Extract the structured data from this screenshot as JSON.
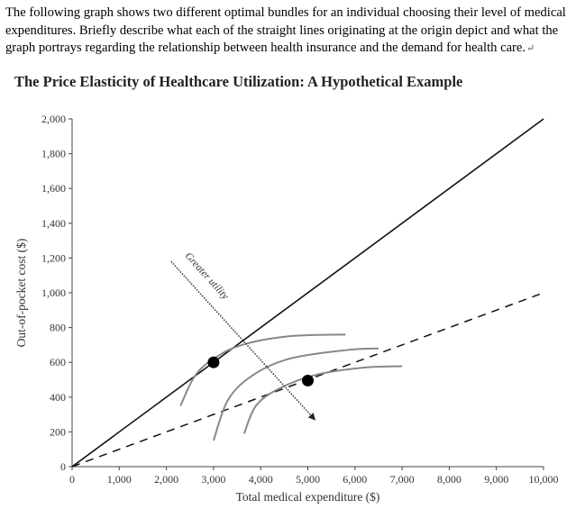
{
  "question": {
    "text": "The following graph shows two different optimal bundles for an individual choosing their level of medical expenditures. Briefly describe what each of the straight lines originating at the origin depict and what the graph portrays regarding the relationship between health insurance and the demand for health care.",
    "return_symbol": "↵"
  },
  "chart_data": {
    "type": "line",
    "title": "The Price Elasticity of Healthcare Utilization: A Hypothetical Example",
    "xlabel": "Total medical expenditure ($)",
    "ylabel": "Out-of-pocket cost ($)",
    "xlim": [
      0,
      10000
    ],
    "ylim": [
      0,
      2000
    ],
    "x_ticks": [
      0,
      1000,
      2000,
      3000,
      4000,
      5000,
      6000,
      7000,
      8000,
      9000,
      10000
    ],
    "x_tick_labels": [
      "0",
      "1,000",
      "2,000",
      "3,000",
      "4,000",
      "5,000",
      "6,000",
      "7,000",
      "8,000",
      "9,000",
      "10,000"
    ],
    "y_ticks": [
      0,
      200,
      400,
      600,
      800,
      1000,
      1200,
      1400,
      1600,
      1800,
      2000
    ],
    "y_tick_labels": [
      "0",
      "200",
      "400",
      "600",
      "800",
      "1,000",
      "1,200",
      "1,400",
      "1,600",
      "1,800",
      "2,000"
    ],
    "lines": [
      {
        "style": "solid",
        "points": [
          [
            0,
            0
          ],
          [
            10000,
            2000
          ]
        ]
      },
      {
        "style": "dashed",
        "points": [
          [
            0,
            0
          ],
          [
            10000,
            1000
          ]
        ]
      }
    ],
    "indifference_curves": [
      {
        "points": [
          [
            2300,
            350
          ],
          [
            2600,
            520
          ],
          [
            3000,
            620
          ],
          [
            3600,
            700
          ],
          [
            4600,
            750
          ],
          [
            5800,
            760
          ]
        ]
      },
      {
        "points": [
          [
            3000,
            150
          ],
          [
            3300,
            380
          ],
          [
            3800,
            520
          ],
          [
            4600,
            620
          ],
          [
            5800,
            670
          ],
          [
            6500,
            680
          ]
        ]
      },
      {
        "points": [
          [
            3650,
            190
          ],
          [
            3900,
            350
          ],
          [
            4400,
            450
          ],
          [
            5200,
            530
          ],
          [
            6200,
            570
          ],
          [
            7000,
            578
          ]
        ]
      }
    ],
    "optimal_bundles": [
      {
        "x": 3000,
        "y": 600
      },
      {
        "x": 5000,
        "y": 495
      }
    ],
    "annotation": {
      "text": "Greater utility",
      "from": [
        2100,
        1180
      ],
      "to": [
        5150,
        270
      ]
    }
  }
}
